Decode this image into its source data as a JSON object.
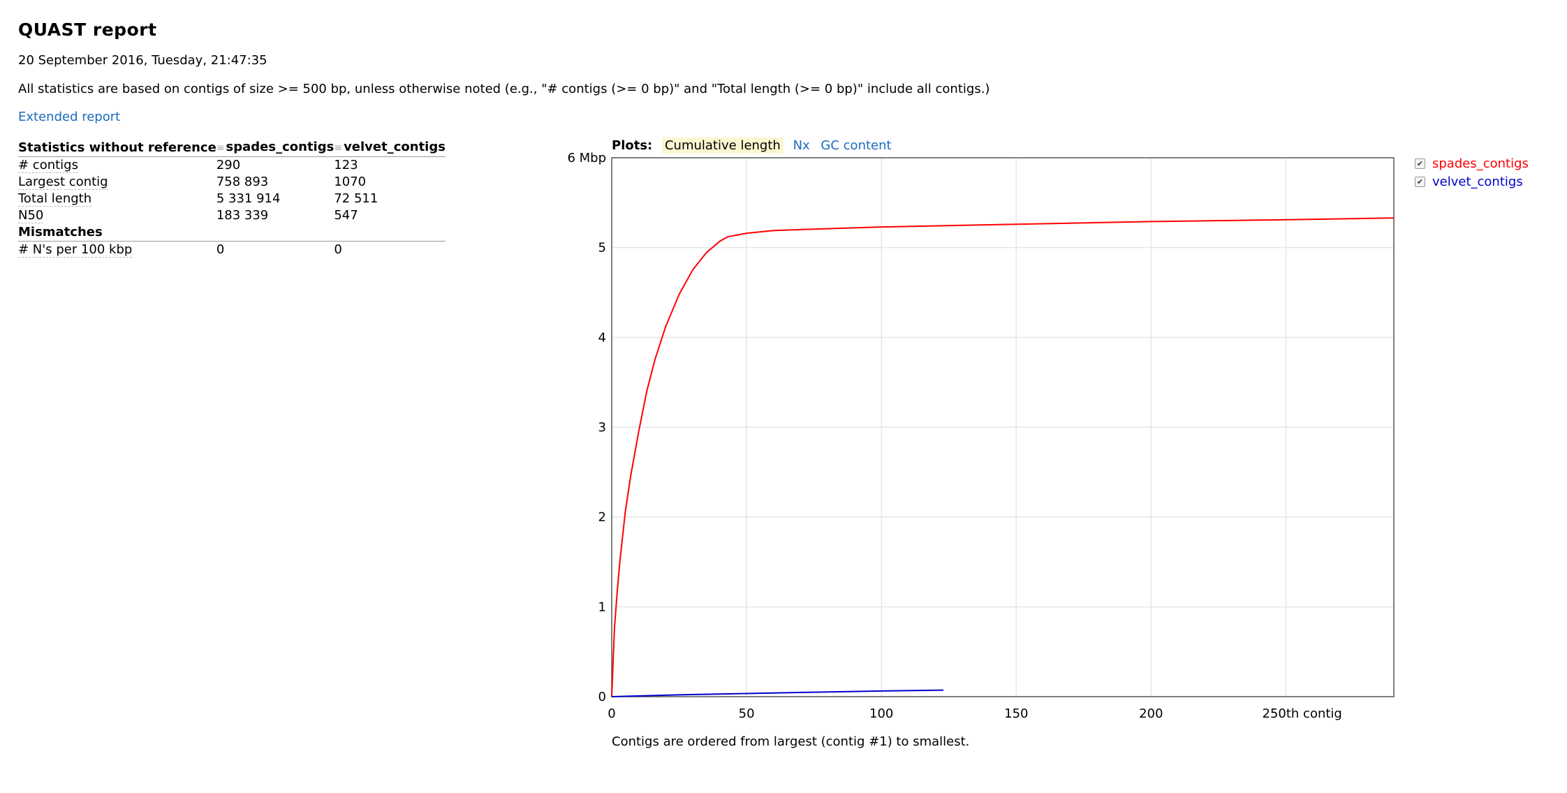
{
  "header": {
    "title": "QUAST report",
    "date": "20 September 2016, Tuesday, 21:47:35",
    "note": "All statistics are based on contigs of size >= 500 bp, unless otherwise noted (e.g., \"# contigs (>= 0 bp)\" and \"Total length (>= 0 bp)\" include all contigs.)",
    "extended_link": "Extended report"
  },
  "stats": {
    "header": [
      "Statistics without reference",
      "spades_contigs",
      "velvet_contigs"
    ],
    "rows": [
      [
        "# contigs",
        "290",
        "123"
      ],
      [
        "Largest contig",
        "758 893",
        "1070"
      ],
      [
        "Total length",
        "5 331 914",
        "72 511"
      ],
      [
        "N50",
        "183 339",
        "547"
      ]
    ],
    "group2": "Mismatches",
    "rows2": [
      [
        "# N's per 100 kbp",
        "0",
        "0"
      ]
    ]
  },
  "plots_bar": {
    "label": "Plots:",
    "tabs": [
      "Cumulative length",
      "Nx",
      "GC content"
    ],
    "selected": "Cumulative length"
  },
  "chart_data": {
    "type": "line",
    "x_ticks": [
      "0",
      "50",
      "100",
      "150",
      "200",
      "250th contig"
    ],
    "y_ticks": [
      "0",
      "1",
      "2",
      "3",
      "4",
      "5",
      "6 Mbp"
    ],
    "xlim": [
      0,
      290
    ],
    "ylim": [
      0,
      6
    ],
    "grid": true,
    "legend_position": "right",
    "series": [
      {
        "name": "spades_contigs",
        "color": "#ff0000",
        "x": [
          0,
          1,
          2,
          3,
          5,
          7,
          10,
          13,
          16,
          20,
          25,
          30,
          35,
          40,
          43,
          50,
          60,
          80,
          100,
          150,
          200,
          250,
          290
        ],
        "y": [
          0,
          0.76,
          1.15,
          1.5,
          2.05,
          2.45,
          2.95,
          3.4,
          3.75,
          4.12,
          4.48,
          4.75,
          4.94,
          5.07,
          5.12,
          5.16,
          5.19,
          5.21,
          5.23,
          5.26,
          5.29,
          5.31,
          5.33
        ]
      },
      {
        "name": "velvet_contigs",
        "color": "#0000cc",
        "x": [
          0,
          25,
          50,
          75,
          100,
          123
        ],
        "y": [
          0,
          0.02,
          0.035,
          0.05,
          0.063,
          0.073
        ]
      }
    ]
  },
  "caption": "Contigs are ordered from largest (contig #1) to smallest.",
  "legend": {
    "items": [
      "spades_contigs",
      "velvet_contigs"
    ],
    "colors": [
      "#ff0000",
      "#0000cc"
    ]
  }
}
